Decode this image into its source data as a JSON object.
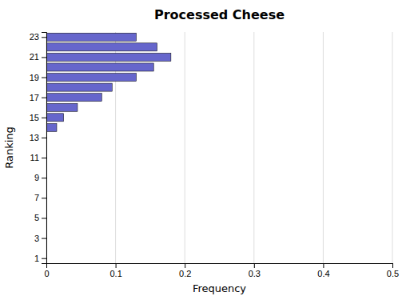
{
  "chart_data": {
    "type": "bar",
    "orientation": "horizontal",
    "title": "Processed Cheese",
    "x_label": "Frequency",
    "y_label": "Ranking",
    "x": [
      14,
      15,
      16,
      17,
      18,
      19,
      20,
      21,
      22,
      23
    ],
    "values": [
      0.015,
      0.025,
      0.045,
      0.08,
      0.095,
      0.13,
      0.155,
      0.18,
      0.16,
      0.13
    ],
    "color": "#6666CC",
    "xlim": [
      0,
      0.5
    ],
    "xticks": [
      0,
      0.1,
      0.2,
      0.3,
      0.4,
      0.5
    ],
    "ylim": [
      0.5,
      23.5
    ],
    "yticks": [
      1,
      3,
      5,
      7,
      9,
      11,
      13,
      15,
      17,
      19,
      21,
      23
    ],
    "grid": true
  }
}
